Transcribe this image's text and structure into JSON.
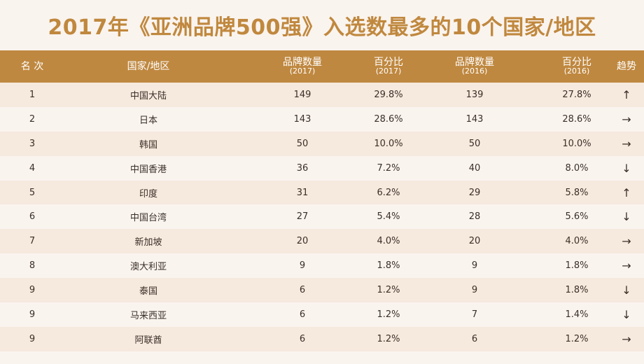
{
  "title": "2017年《亚洲品牌500强》入选数最多的10个国家/地区",
  "colors": {
    "accent": "#bf8840",
    "title": "#c0883e",
    "row_alt": "#f6e9dd",
    "background": "#faf4ef"
  },
  "headers": {
    "rank": "名 次",
    "region": "国家/地区",
    "count2017": "品牌数量",
    "count2017_sub": "(2017)",
    "pct2017": "百分比",
    "pct2017_sub": "(2017)",
    "count2016": "品牌数量",
    "count2016_sub": "(2016)",
    "pct2016": "百分比",
    "pct2016_sub": "(2016)",
    "trend": "趋势"
  },
  "rows": [
    {
      "rank": "1",
      "region": "中国大陆",
      "count2017": "149",
      "pct2017": "29.8%",
      "count2016": "139",
      "pct2016": "27.8%",
      "trend": "↑"
    },
    {
      "rank": "2",
      "region": "日本",
      "count2017": "143",
      "pct2017": "28.6%",
      "count2016": "143",
      "pct2016": "28.6%",
      "trend": "→"
    },
    {
      "rank": "3",
      "region": "韩国",
      "count2017": "50",
      "pct2017": "10.0%",
      "count2016": "50",
      "pct2016": "10.0%",
      "trend": "→"
    },
    {
      "rank": "4",
      "region": "中国香港",
      "count2017": "36",
      "pct2017": "7.2%",
      "count2016": "40",
      "pct2016": "8.0%",
      "trend": "↓"
    },
    {
      "rank": "5",
      "region": "印度",
      "count2017": "31",
      "pct2017": "6.2%",
      "count2016": "29",
      "pct2016": "5.8%",
      "trend": "↑"
    },
    {
      "rank": "6",
      "region": "中国台湾",
      "count2017": "27",
      "pct2017": "5.4%",
      "count2016": "28",
      "pct2016": "5.6%",
      "trend": "↓"
    },
    {
      "rank": "7",
      "region": "新加坡",
      "count2017": "20",
      "pct2017": "4.0%",
      "count2016": "20",
      "pct2016": "4.0%",
      "trend": "→"
    },
    {
      "rank": "8",
      "region": "澳大利亚",
      "count2017": "9",
      "pct2017": "1.8%",
      "count2016": "9",
      "pct2016": "1.8%",
      "trend": "→"
    },
    {
      "rank": "9",
      "region": "泰国",
      "count2017": "6",
      "pct2017": "1.2%",
      "count2016": "9",
      "pct2016": "1.8%",
      "trend": "↓"
    },
    {
      "rank": "9",
      "region": "马来西亚",
      "count2017": "6",
      "pct2017": "1.2%",
      "count2016": "7",
      "pct2016": "1.4%",
      "trend": "↓"
    },
    {
      "rank": "9",
      "region": "阿联酋",
      "count2017": "6",
      "pct2017": "1.2%",
      "count2016": "6",
      "pct2016": "1.2%",
      "trend": "→"
    }
  ]
}
